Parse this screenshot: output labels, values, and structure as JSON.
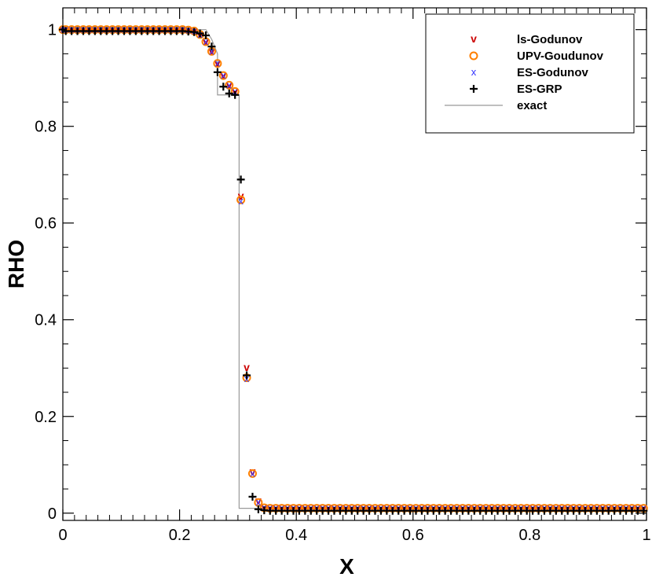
{
  "chart_data": {
    "type": "scatter",
    "xlabel": "X",
    "ylabel": "RHO",
    "xlim": [
      0,
      1
    ],
    "ylim": [
      -0.015,
      1.045
    ],
    "x_ticks": [
      0,
      0.2,
      0.4,
      0.6,
      0.8,
      1
    ],
    "x_tick_labels": [
      "0",
      "0.2",
      "0.4",
      "0.6",
      "0.8",
      "1"
    ],
    "y_ticks": [
      0,
      0.2,
      0.4,
      0.6,
      0.8,
      1
    ],
    "y_tick_labels": [
      "0",
      "0.2",
      "0.4",
      "0.6",
      "0.8",
      "1"
    ],
    "grid": false,
    "legend_position": "top-right",
    "series": [
      {
        "name": "ls-Godunov",
        "marker": "v",
        "color": "#cc0000",
        "x": [
          0.0,
          0.005,
          0.015,
          0.025,
          0.035,
          0.045,
          0.055,
          0.065,
          0.075,
          0.085,
          0.095,
          0.105,
          0.115,
          0.125,
          0.135,
          0.145,
          0.155,
          0.165,
          0.175,
          0.185,
          0.195,
          0.205,
          0.215,
          0.225,
          0.235,
          0.245,
          0.255,
          0.265,
          0.275,
          0.285,
          0.295,
          0.305,
          0.315,
          0.325,
          0.335,
          0.345,
          0.355,
          0.365,
          0.375,
          0.385,
          0.395,
          0.405,
          0.415,
          0.425,
          0.435,
          0.445,
          0.455,
          0.465,
          0.475,
          0.485,
          0.495,
          0.505,
          0.515,
          0.525,
          0.535,
          0.545,
          0.555,
          0.565,
          0.575,
          0.585,
          0.595,
          0.605,
          0.615,
          0.625,
          0.635,
          0.645,
          0.655,
          0.665,
          0.675,
          0.685,
          0.695,
          0.705,
          0.715,
          0.725,
          0.735,
          0.745,
          0.755,
          0.765,
          0.775,
          0.785,
          0.795,
          0.805,
          0.815,
          0.825,
          0.835,
          0.845,
          0.855,
          0.865,
          0.875,
          0.885,
          0.895,
          0.905,
          0.915,
          0.925,
          0.935,
          0.945,
          0.955,
          0.965,
          0.975,
          0.985,
          0.995
        ],
        "y": [
          1.0,
          1.0,
          1.0,
          1.0,
          1.0,
          1.0,
          1.0,
          1.0,
          1.0,
          1.0,
          1.0,
          1.0,
          1.0,
          1.0,
          1.0,
          1.0,
          1.0,
          1.0,
          1.0,
          1.0,
          1.0,
          1.0,
          0.999,
          0.997,
          0.99,
          0.975,
          0.955,
          0.93,
          0.905,
          0.885,
          0.872,
          0.655,
          0.3,
          0.085,
          0.025,
          0.013,
          0.012,
          0.012,
          0.012,
          0.012,
          0.012,
          0.012,
          0.012,
          0.012,
          0.012,
          0.012,
          0.012,
          0.012,
          0.012,
          0.012,
          0.012,
          0.012,
          0.012,
          0.012,
          0.012,
          0.012,
          0.012,
          0.012,
          0.012,
          0.012,
          0.012,
          0.012,
          0.012,
          0.012,
          0.012,
          0.012,
          0.012,
          0.012,
          0.012,
          0.012,
          0.012,
          0.012,
          0.012,
          0.012,
          0.012,
          0.012,
          0.012,
          0.012,
          0.012,
          0.012,
          0.012,
          0.012,
          0.012,
          0.012,
          0.012,
          0.012,
          0.012,
          0.012,
          0.012,
          0.012,
          0.012,
          0.012,
          0.012,
          0.012,
          0.012,
          0.012,
          0.012,
          0.012,
          0.012,
          0.012,
          0.012
        ]
      },
      {
        "name": "UPV-Goudunov",
        "marker": "o",
        "color": "#ff7f00",
        "x": [
          0.0,
          0.005,
          0.015,
          0.025,
          0.035,
          0.045,
          0.055,
          0.065,
          0.075,
          0.085,
          0.095,
          0.105,
          0.115,
          0.125,
          0.135,
          0.145,
          0.155,
          0.165,
          0.175,
          0.185,
          0.195,
          0.205,
          0.215,
          0.225,
          0.235,
          0.245,
          0.255,
          0.265,
          0.275,
          0.285,
          0.295,
          0.305,
          0.315,
          0.325,
          0.335,
          0.345,
          0.355,
          0.365,
          0.375,
          0.385,
          0.395,
          0.405,
          0.415,
          0.425,
          0.435,
          0.445,
          0.455,
          0.465,
          0.475,
          0.485,
          0.495,
          0.505,
          0.515,
          0.525,
          0.535,
          0.545,
          0.555,
          0.565,
          0.575,
          0.585,
          0.595,
          0.605,
          0.615,
          0.625,
          0.635,
          0.645,
          0.655,
          0.665,
          0.675,
          0.685,
          0.695,
          0.705,
          0.715,
          0.725,
          0.735,
          0.745,
          0.755,
          0.765,
          0.775,
          0.785,
          0.795,
          0.805,
          0.815,
          0.825,
          0.835,
          0.845,
          0.855,
          0.865,
          0.875,
          0.885,
          0.895,
          0.905,
          0.915,
          0.925,
          0.935,
          0.945,
          0.955,
          0.965,
          0.975,
          0.985,
          0.995
        ],
        "y": [
          1.0,
          1.0,
          1.0,
          1.0,
          1.0,
          1.0,
          1.0,
          1.0,
          1.0,
          1.0,
          1.0,
          1.0,
          1.0,
          1.0,
          1.0,
          1.0,
          1.0,
          1.0,
          1.0,
          1.0,
          1.0,
          1.0,
          0.999,
          0.997,
          0.99,
          0.975,
          0.955,
          0.93,
          0.905,
          0.885,
          0.872,
          0.648,
          0.28,
          0.082,
          0.022,
          0.011,
          0.01,
          0.01,
          0.01,
          0.01,
          0.01,
          0.01,
          0.01,
          0.01,
          0.01,
          0.01,
          0.01,
          0.01,
          0.01,
          0.01,
          0.01,
          0.01,
          0.01,
          0.01,
          0.01,
          0.01,
          0.01,
          0.01,
          0.01,
          0.01,
          0.01,
          0.01,
          0.01,
          0.01,
          0.01,
          0.01,
          0.01,
          0.01,
          0.01,
          0.01,
          0.01,
          0.01,
          0.01,
          0.01,
          0.01,
          0.01,
          0.01,
          0.01,
          0.01,
          0.01,
          0.01,
          0.01,
          0.01,
          0.01,
          0.01,
          0.01,
          0.01,
          0.01,
          0.01,
          0.01,
          0.01,
          0.01,
          0.01,
          0.01,
          0.01,
          0.01,
          0.01,
          0.01,
          0.01,
          0.01,
          0.01
        ]
      },
      {
        "name": "ES-Godunov",
        "marker": "x",
        "color": "#3333ff",
        "x": [
          0.0,
          0.005,
          0.015,
          0.025,
          0.035,
          0.045,
          0.055,
          0.065,
          0.075,
          0.085,
          0.095,
          0.105,
          0.115,
          0.125,
          0.135,
          0.145,
          0.155,
          0.165,
          0.175,
          0.185,
          0.195,
          0.205,
          0.215,
          0.225,
          0.235,
          0.245,
          0.255,
          0.265,
          0.275,
          0.285,
          0.295,
          0.305,
          0.315,
          0.325,
          0.335,
          0.345,
          0.355,
          0.365,
          0.375,
          0.385,
          0.395,
          0.405,
          0.415,
          0.425,
          0.435,
          0.445,
          0.455,
          0.465,
          0.475,
          0.485,
          0.495,
          0.505,
          0.515,
          0.525,
          0.535,
          0.545,
          0.555,
          0.565,
          0.575,
          0.585,
          0.595,
          0.605,
          0.615,
          0.625,
          0.635,
          0.645,
          0.655,
          0.665,
          0.675,
          0.685,
          0.695,
          0.705,
          0.715,
          0.725,
          0.735,
          0.745,
          0.755,
          0.765,
          0.775,
          0.785,
          0.795,
          0.805,
          0.815,
          0.825,
          0.835,
          0.845,
          0.855,
          0.865,
          0.875,
          0.885,
          0.895,
          0.905,
          0.915,
          0.925,
          0.935,
          0.945,
          0.955,
          0.965,
          0.975,
          0.985,
          0.995
        ],
        "y": [
          1.0,
          1.0,
          1.0,
          1.0,
          1.0,
          1.0,
          1.0,
          1.0,
          1.0,
          1.0,
          1.0,
          1.0,
          1.0,
          1.0,
          1.0,
          1.0,
          1.0,
          1.0,
          1.0,
          1.0,
          1.0,
          1.0,
          0.999,
          0.997,
          0.99,
          0.975,
          0.955,
          0.93,
          0.905,
          0.885,
          0.872,
          0.645,
          0.278,
          0.082,
          0.022,
          0.011,
          0.01,
          0.01,
          0.01,
          0.01,
          0.01,
          0.01,
          0.01,
          0.01,
          0.01,
          0.01,
          0.01,
          0.01,
          0.01,
          0.01,
          0.01,
          0.01,
          0.01,
          0.01,
          0.01,
          0.01,
          0.01,
          0.01,
          0.01,
          0.01,
          0.01,
          0.01,
          0.01,
          0.01,
          0.01,
          0.01,
          0.01,
          0.01,
          0.01,
          0.01,
          0.01,
          0.01,
          0.01,
          0.01,
          0.01,
          0.01,
          0.01,
          0.01,
          0.01,
          0.01,
          0.01,
          0.01,
          0.01,
          0.01,
          0.01,
          0.01,
          0.01,
          0.01,
          0.01,
          0.01,
          0.01,
          0.01,
          0.01,
          0.01,
          0.01,
          0.01,
          0.01,
          0.01,
          0.01,
          0.01,
          0.01
        ]
      },
      {
        "name": "ES-GRP",
        "marker": "+",
        "color": "#000000",
        "x": [
          0.0,
          0.005,
          0.015,
          0.025,
          0.035,
          0.045,
          0.055,
          0.065,
          0.075,
          0.085,
          0.095,
          0.105,
          0.115,
          0.125,
          0.135,
          0.145,
          0.155,
          0.165,
          0.175,
          0.185,
          0.195,
          0.205,
          0.215,
          0.225,
          0.235,
          0.245,
          0.255,
          0.265,
          0.275,
          0.285,
          0.295,
          0.305,
          0.315,
          0.325,
          0.335,
          0.345,
          0.355,
          0.365,
          0.375,
          0.385,
          0.395,
          0.405,
          0.415,
          0.425,
          0.435,
          0.445,
          0.455,
          0.465,
          0.475,
          0.485,
          0.495,
          0.505,
          0.515,
          0.525,
          0.535,
          0.545,
          0.555,
          0.565,
          0.575,
          0.585,
          0.595,
          0.605,
          0.615,
          0.625,
          0.635,
          0.645,
          0.655,
          0.665,
          0.675,
          0.685,
          0.695,
          0.705,
          0.715,
          0.725,
          0.735,
          0.745,
          0.755,
          0.765,
          0.775,
          0.785,
          0.795,
          0.805,
          0.815,
          0.825,
          0.835,
          0.845,
          0.855,
          0.865,
          0.875,
          0.885,
          0.895,
          0.905,
          0.915,
          0.925,
          0.935,
          0.945,
          0.955,
          0.965,
          0.975,
          0.985,
          0.995
        ],
        "y": [
          1.0,
          0.997,
          0.997,
          0.997,
          0.997,
          0.997,
          0.997,
          0.997,
          0.997,
          0.997,
          0.997,
          0.997,
          0.997,
          0.997,
          0.997,
          0.997,
          0.997,
          0.997,
          0.997,
          0.997,
          0.997,
          0.997,
          0.996,
          0.995,
          0.992,
          0.988,
          0.965,
          0.912,
          0.882,
          0.868,
          0.865,
          0.69,
          0.285,
          0.034,
          0.008,
          0.006,
          0.005,
          0.005,
          0.005,
          0.005,
          0.005,
          0.005,
          0.005,
          0.005,
          0.005,
          0.005,
          0.005,
          0.005,
          0.005,
          0.005,
          0.005,
          0.005,
          0.005,
          0.005,
          0.005,
          0.005,
          0.005,
          0.005,
          0.005,
          0.005,
          0.005,
          0.005,
          0.005,
          0.005,
          0.005,
          0.005,
          0.005,
          0.005,
          0.005,
          0.005,
          0.005,
          0.005,
          0.005,
          0.005,
          0.005,
          0.005,
          0.005,
          0.005,
          0.005,
          0.005,
          0.005,
          0.005,
          0.005,
          0.005,
          0.005,
          0.005,
          0.005,
          0.005,
          0.005,
          0.005,
          0.005,
          0.005,
          0.005,
          0.005,
          0.005,
          0.005,
          0.005,
          0.005,
          0.005,
          0.005,
          0.005
        ]
      },
      {
        "name": "exact",
        "marker": "line",
        "color": "#999999",
        "x": [
          0,
          0.245,
          0.255,
          0.265,
          0.265,
          0.3,
          0.3,
          0.302,
          0.302,
          0.305,
          0.305,
          1.0
        ],
        "y": [
          1.0,
          1.0,
          0.98,
          0.95,
          0.865,
          0.865,
          0.865,
          0.865,
          0.01,
          0.01,
          0.01,
          0.01
        ]
      }
    ]
  }
}
